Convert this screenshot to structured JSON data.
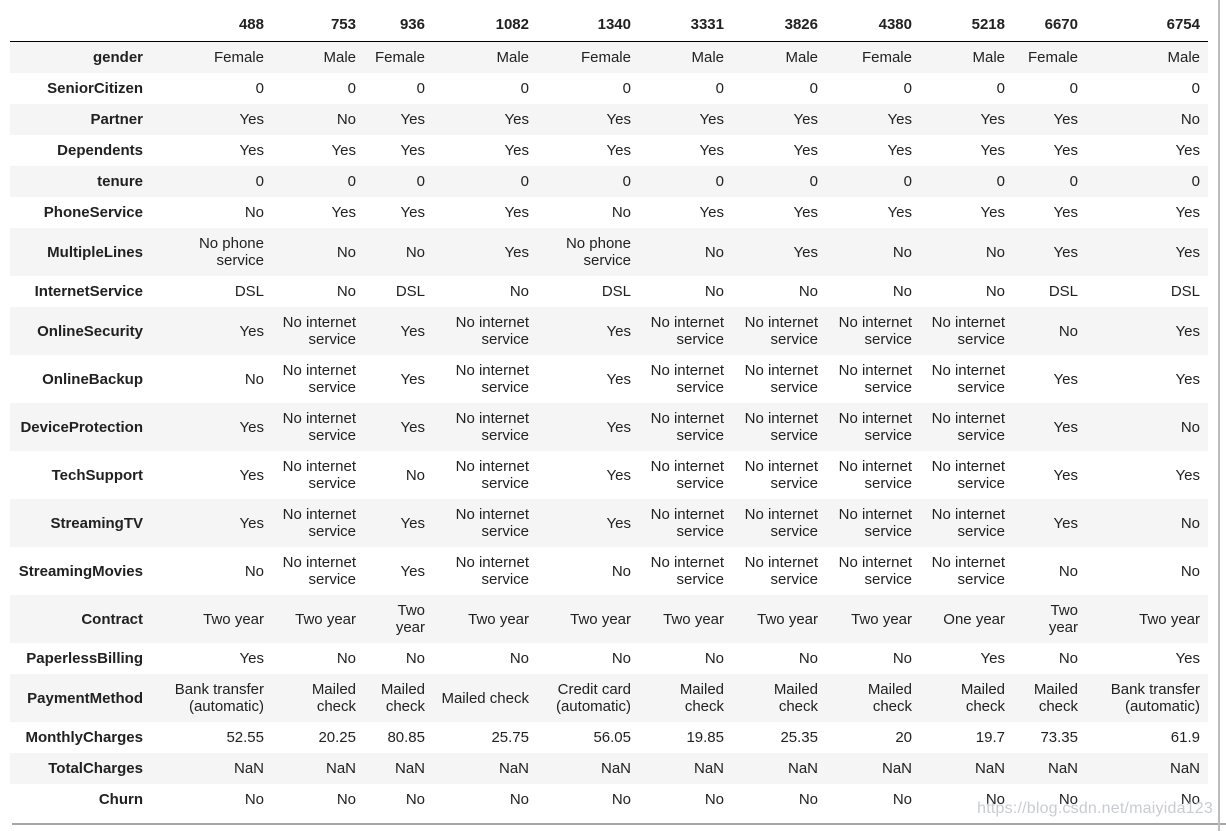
{
  "chart_data": {
    "type": "table",
    "title": "",
    "index_label": "",
    "columns": [
      "488",
      "753",
      "936",
      "1082",
      "1340",
      "3331",
      "3826",
      "4380",
      "5218",
      "6670",
      "6754"
    ],
    "rows": [
      {
        "label": "gender",
        "values": [
          "Female",
          "Male",
          "Female",
          "Male",
          "Female",
          "Male",
          "Male",
          "Female",
          "Male",
          "Female",
          "Male"
        ]
      },
      {
        "label": "SeniorCitizen",
        "values": [
          "0",
          "0",
          "0",
          "0",
          "0",
          "0",
          "0",
          "0",
          "0",
          "0",
          "0"
        ]
      },
      {
        "label": "Partner",
        "values": [
          "Yes",
          "No",
          "Yes",
          "Yes",
          "Yes",
          "Yes",
          "Yes",
          "Yes",
          "Yes",
          "Yes",
          "No"
        ]
      },
      {
        "label": "Dependents",
        "values": [
          "Yes",
          "Yes",
          "Yes",
          "Yes",
          "Yes",
          "Yes",
          "Yes",
          "Yes",
          "Yes",
          "Yes",
          "Yes"
        ]
      },
      {
        "label": "tenure",
        "values": [
          "0",
          "0",
          "0",
          "0",
          "0",
          "0",
          "0",
          "0",
          "0",
          "0",
          "0"
        ]
      },
      {
        "label": "PhoneService",
        "values": [
          "No",
          "Yes",
          "Yes",
          "Yes",
          "No",
          "Yes",
          "Yes",
          "Yes",
          "Yes",
          "Yes",
          "Yes"
        ]
      },
      {
        "label": "MultipleLines",
        "values": [
          "No phone service",
          "No",
          "No",
          "Yes",
          "No phone service",
          "No",
          "Yes",
          "No",
          "No",
          "Yes",
          "Yes"
        ]
      },
      {
        "label": "InternetService",
        "values": [
          "DSL",
          "No",
          "DSL",
          "No",
          "DSL",
          "No",
          "No",
          "No",
          "No",
          "DSL",
          "DSL"
        ]
      },
      {
        "label": "OnlineSecurity",
        "values": [
          "Yes",
          "No internet service",
          "Yes",
          "No internet service",
          "Yes",
          "No internet service",
          "No internet service",
          "No internet service",
          "No internet service",
          "No",
          "Yes"
        ]
      },
      {
        "label": "OnlineBackup",
        "values": [
          "No",
          "No internet service",
          "Yes",
          "No internet service",
          "Yes",
          "No internet service",
          "No internet service",
          "No internet service",
          "No internet service",
          "Yes",
          "Yes"
        ]
      },
      {
        "label": "DeviceProtection",
        "values": [
          "Yes",
          "No internet service",
          "Yes",
          "No internet service",
          "Yes",
          "No internet service",
          "No internet service",
          "No internet service",
          "No internet service",
          "Yes",
          "No"
        ]
      },
      {
        "label": "TechSupport",
        "values": [
          "Yes",
          "No internet service",
          "No",
          "No internet service",
          "Yes",
          "No internet service",
          "No internet service",
          "No internet service",
          "No internet service",
          "Yes",
          "Yes"
        ]
      },
      {
        "label": "StreamingTV",
        "values": [
          "Yes",
          "No internet service",
          "Yes",
          "No internet service",
          "Yes",
          "No internet service",
          "No internet service",
          "No internet service",
          "No internet service",
          "Yes",
          "No"
        ]
      },
      {
        "label": "StreamingMovies",
        "values": [
          "No",
          "No internet service",
          "Yes",
          "No internet service",
          "No",
          "No internet service",
          "No internet service",
          "No internet service",
          "No internet service",
          "No",
          "No"
        ]
      },
      {
        "label": "Contract",
        "values": [
          "Two year",
          "Two year",
          "Two year",
          "Two year",
          "Two year",
          "Two year",
          "Two year",
          "Two year",
          "One year",
          "Two year",
          "Two year"
        ]
      },
      {
        "label": "PaperlessBilling",
        "values": [
          "Yes",
          "No",
          "No",
          "No",
          "No",
          "No",
          "No",
          "No",
          "Yes",
          "No",
          "Yes"
        ]
      },
      {
        "label": "PaymentMethod",
        "values": [
          "Bank transfer (automatic)",
          "Mailed check",
          "Mailed check",
          "Mailed check",
          "Credit card (automatic)",
          "Mailed check",
          "Mailed check",
          "Mailed check",
          "Mailed check",
          "Mailed check",
          "Bank transfer (automatic)"
        ]
      },
      {
        "label": "MonthlyCharges",
        "values": [
          "52.55",
          "20.25",
          "80.85",
          "25.75",
          "56.05",
          "19.85",
          "25.35",
          "20",
          "19.7",
          "73.35",
          "61.9"
        ]
      },
      {
        "label": "TotalCharges",
        "values": [
          "NaN",
          "NaN",
          "NaN",
          "NaN",
          "NaN",
          "NaN",
          "NaN",
          "NaN",
          "NaN",
          "NaN",
          "NaN"
        ]
      },
      {
        "label": "Churn",
        "values": [
          "No",
          "No",
          "No",
          "No",
          "No",
          "No",
          "No",
          "No",
          "No",
          "No",
          "No"
        ]
      }
    ],
    "layout": {
      "zebra_stripes": true,
      "stripe_color": "#f5f5f5",
      "header_rule_color": "#000000",
      "text_color": "#212121",
      "alignment": "right"
    }
  },
  "watermark": "https://blog.csdn.net/maiyida123"
}
